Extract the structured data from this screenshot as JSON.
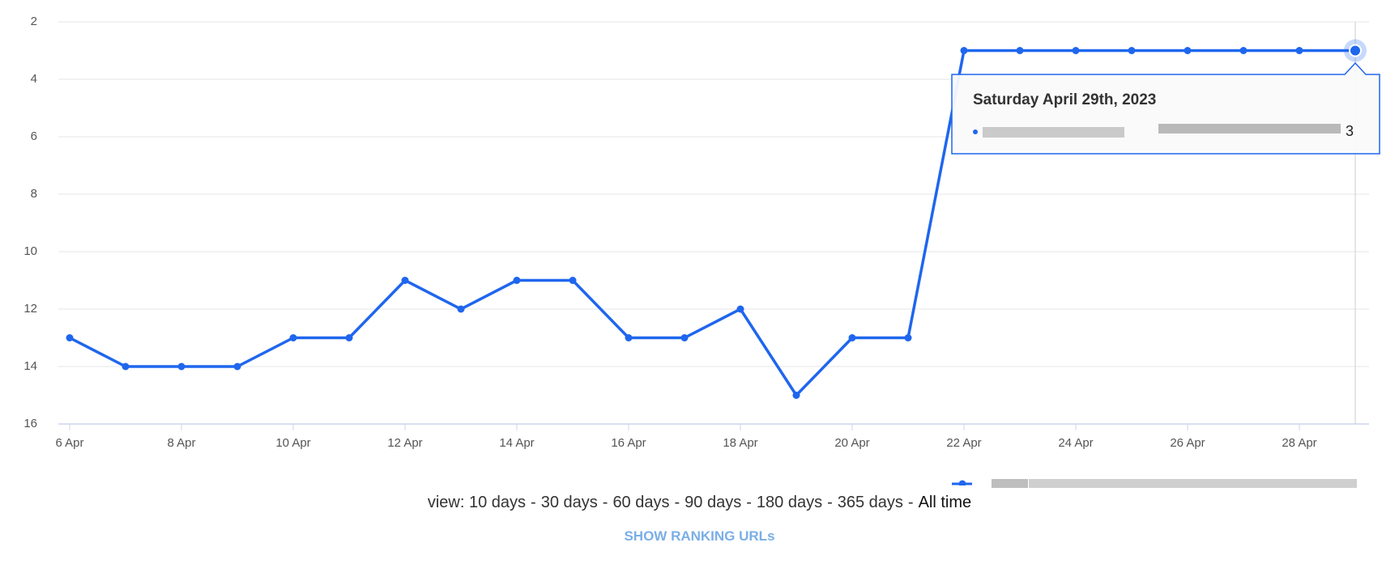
{
  "chart_data": {
    "type": "line",
    "categories": [
      "6 Apr",
      null,
      "8 Apr",
      null,
      "10 Apr",
      null,
      "12 Apr",
      null,
      "14 Apr",
      null,
      "16 Apr",
      null,
      "18 Apr",
      null,
      "20 Apr",
      null,
      "22 Apr",
      null,
      "24 Apr",
      null,
      "26 Apr",
      null,
      "28 Apr",
      null
    ],
    "series": [
      {
        "color": "#1f66ee",
        "values": [
          13,
          14,
          14,
          14,
          13,
          13,
          11,
          12,
          11,
          11,
          13,
          13,
          12,
          15,
          13,
          13,
          3,
          3,
          3,
          3,
          3,
          3,
          3,
          3
        ]
      }
    ],
    "ylim": [
      2,
      16
    ],
    "y_reversed": true,
    "yticks": [
      2,
      4,
      6,
      8,
      10,
      12,
      14,
      16
    ],
    "grid": true,
    "tooltip": {
      "title": "Saturday April 29th, 2023",
      "index": 23
    },
    "view_label": "view:",
    "view_options": [
      "10 days",
      "30 days",
      "60 days",
      "90 days",
      "180 days",
      "365 days",
      "All time"
    ],
    "button": "SHOW RANKING URLs"
  }
}
